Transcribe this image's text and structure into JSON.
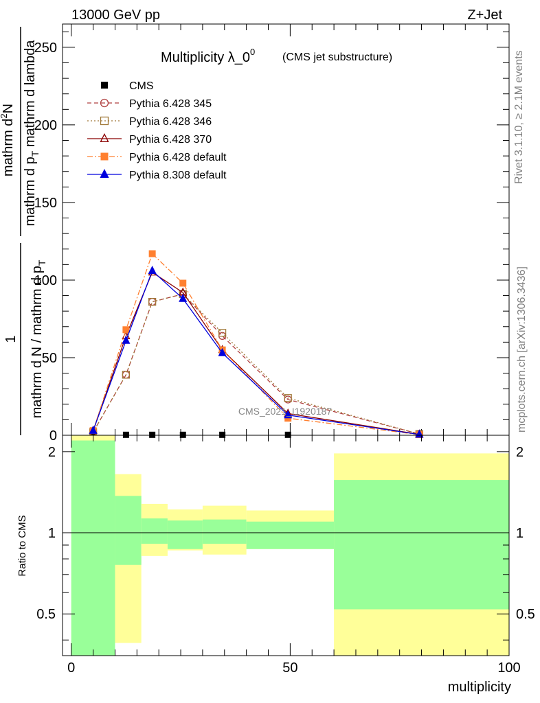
{
  "header": {
    "energy_label": "13000 GeV pp",
    "process_label": "Z+Jet"
  },
  "side_labels": {
    "rivet": "Rivet 3.1.10, ≥ 2.1M events",
    "mcplots": "mcplots.cern.ch [arXiv:1306.3436]"
  },
  "watermark": "CMS_2021_I1920187",
  "colors": {
    "cms": "#000000",
    "py345": "#b04040",
    "py346": "#a07838",
    "py370": "#8b0000",
    "pydefault": "#ff8030",
    "py8": "#0000dd",
    "band_inner": "#99ff99",
    "band_outer": "#ffff99"
  },
  "chart_data": [
    {
      "type": "line",
      "title": "Multiplicity λ_0",
      "title_sup": "0",
      "subtitle": "(CMS jet substructure)",
      "ylabel": {
        "numerator": "1",
        "denominator": "mathrm d N / mathrm d p",
        "denominator_sub": "T",
        "numerator_main": "mathrm d",
        "numerator_sup": "2",
        "numerator_end": "N",
        "denom2_start": "mathrm d p",
        "denom2_sub": "T",
        "denom2_end": " mathrm d lambda"
      },
      "xlim": [
        -2,
        100
      ],
      "ylim": [
        0,
        265
      ],
      "yticks": [
        0,
        50,
        100,
        150,
        200,
        250
      ],
      "x": [
        5,
        12.5,
        18.5,
        25.5,
        34.5,
        49.5,
        79.5
      ],
      "series": [
        {
          "name": "CMS",
          "marker": "filled-square",
          "line": "none",
          "values": [
            0.3,
            0.3,
            0.3,
            0.3,
            0.3,
            0.3,
            0.3
          ],
          "x": [
            5,
            12.5,
            18.5,
            25.5,
            34.5,
            49.5,
            79.5
          ]
        },
        {
          "name": "Pythia 6.428 345",
          "marker": "open-circle",
          "line": "dashed",
          "values": [
            2,
            39,
            86,
            91,
            64,
            23,
            0.8
          ]
        },
        {
          "name": "Pythia 6.428 346",
          "marker": "open-square",
          "line": "dotted",
          "values": [
            2,
            39,
            86,
            91,
            66,
            24,
            0.8
          ]
        },
        {
          "name": "Pythia 6.428 370",
          "marker": "open-triangle",
          "line": "solid",
          "values": [
            3,
            64,
            105,
            92,
            55,
            14,
            0.6
          ]
        },
        {
          "name": "Pythia 6.428 default",
          "marker": "filled-square",
          "line": "dashdot",
          "values": [
            3,
            68,
            117,
            98,
            55,
            11,
            0.4
          ]
        },
        {
          "name": "Pythia 8.308 default",
          "marker": "filled-triangle",
          "line": "solid",
          "values": [
            3,
            61,
            106,
            88,
            53,
            13,
            0.5
          ]
        }
      ],
      "legend_position": "top-left"
    },
    {
      "type": "area",
      "ylabel": "Ratio to CMS",
      "xlabel": "multiplicity",
      "xlim": [
        -2,
        100
      ],
      "ylim": [
        0.35,
        2.3
      ],
      "yticks": [
        0.5,
        1,
        2
      ],
      "xticks": [
        0,
        50,
        100
      ],
      "reference": 1,
      "bins": [
        {
          "x": [
            0,
            10
          ],
          "inner": [
            0.35,
            2.2
          ],
          "outer": [
            0.35,
            2.3
          ]
        },
        {
          "x": [
            10,
            16
          ],
          "inner": [
            0.76,
            1.37
          ],
          "outer": [
            0.39,
            1.65
          ]
        },
        {
          "x": [
            16,
            22
          ],
          "inner": [
            0.91,
            1.13
          ],
          "outer": [
            0.82,
            1.28
          ]
        },
        {
          "x": [
            22,
            30
          ],
          "inner": [
            0.87,
            1.11
          ],
          "outer": [
            0.86,
            1.22
          ]
        },
        {
          "x": [
            30,
            40
          ],
          "inner": [
            0.91,
            1.12
          ],
          "outer": [
            0.83,
            1.26
          ]
        },
        {
          "x": [
            40,
            60
          ],
          "inner": [
            0.87,
            1.1
          ],
          "outer": [
            0.87,
            1.21
          ]
        },
        {
          "x": [
            60,
            100
          ],
          "inner": [
            0.52,
            1.57
          ],
          "outer": [
            0.35,
            1.97
          ]
        }
      ]
    }
  ]
}
